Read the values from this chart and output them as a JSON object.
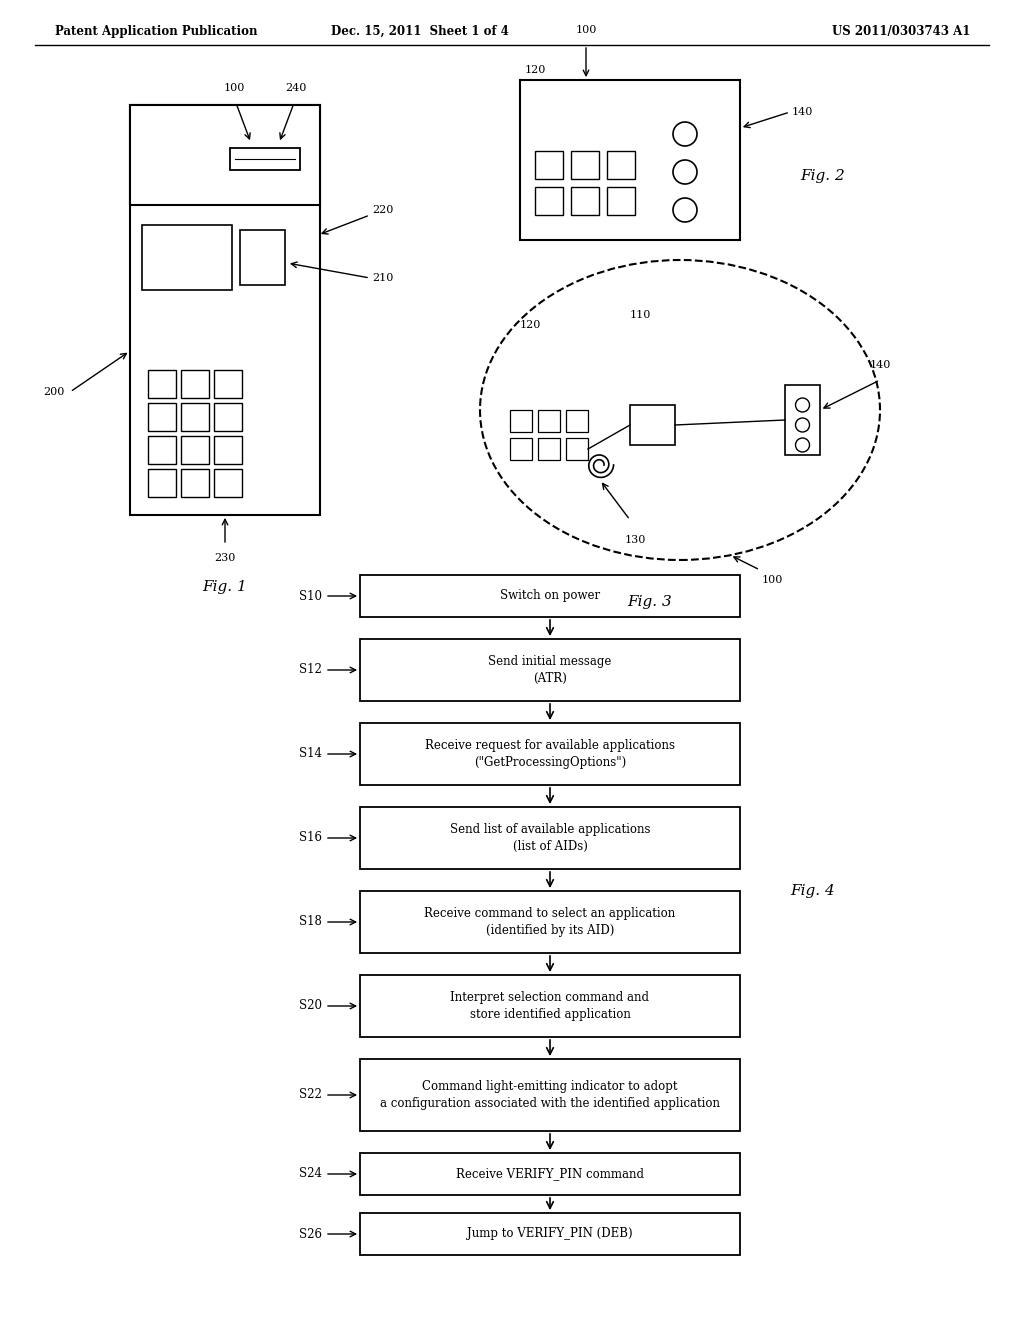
{
  "bg_color": "#ffffff",
  "header_left": "Patent Application Publication",
  "header_mid": "Dec. 15, 2011  Sheet 1 of 4",
  "header_right": "US 2011/0303743 A1",
  "flow_steps": [
    {
      "id": "S10",
      "text": "Switch on power"
    },
    {
      "id": "S12",
      "text": "Send initial message\n(ATR)"
    },
    {
      "id": "S14",
      "text": "Receive request for available applications\n(\"GetProcessingOptions\")"
    },
    {
      "id": "S16",
      "text": "Send list of available applications\n(list of AIDs)"
    },
    {
      "id": "S18",
      "text": "Receive command to select an application\n(identified by its AID)"
    },
    {
      "id": "S20",
      "text": "Interpret selection command and\nstore identified application"
    },
    {
      "id": "S22",
      "text": "Command light-emitting indicator to adopt\na configuration associated with the identified application"
    },
    {
      "id": "S24",
      "text": "Receive VERIFY_PIN command"
    },
    {
      "id": "S26",
      "text": "Jump to VERIFY_PIN (DEB)"
    }
  ]
}
